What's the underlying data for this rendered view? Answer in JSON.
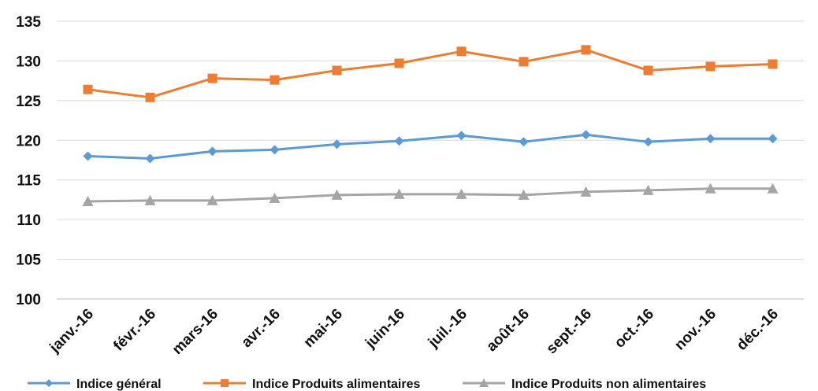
{
  "chart_data": {
    "type": "line",
    "title": "",
    "xlabel": "",
    "ylabel": "",
    "categories": [
      "janv.-16",
      "févr.-16",
      "mars-16",
      "avr.-16",
      "mai-16",
      "juin-16",
      "juil.-16",
      "août-16",
      "sept.-16",
      "oct.-16",
      "nov.-16",
      "déc.-16"
    ],
    "ylim": [
      100,
      135
    ],
    "yticks": [
      100,
      105,
      110,
      115,
      120,
      125,
      130,
      135
    ],
    "grid": true,
    "legend_position": "bottom",
    "series": [
      {
        "name": "Indice général",
        "color": "#5B9BD5",
        "marker": "diamond",
        "values": [
          118.0,
          117.7,
          118.6,
          118.8,
          119.5,
          119.9,
          120.6,
          119.8,
          120.7,
          119.8,
          120.2,
          120.2
        ]
      },
      {
        "name": "Indice Produits alimentaires",
        "color": "#ED7D31",
        "marker": "square",
        "values": [
          126.4,
          125.4,
          127.8,
          127.6,
          128.8,
          129.7,
          131.2,
          129.9,
          131.4,
          128.8,
          129.3,
          129.6
        ]
      },
      {
        "name": "Indice Produits non alimentaires",
        "color": "#A5A5A5",
        "marker": "triangle",
        "values": [
          112.3,
          112.4,
          112.4,
          112.7,
          113.1,
          113.2,
          113.2,
          113.1,
          113.5,
          113.7,
          113.9,
          113.9
        ]
      }
    ]
  }
}
